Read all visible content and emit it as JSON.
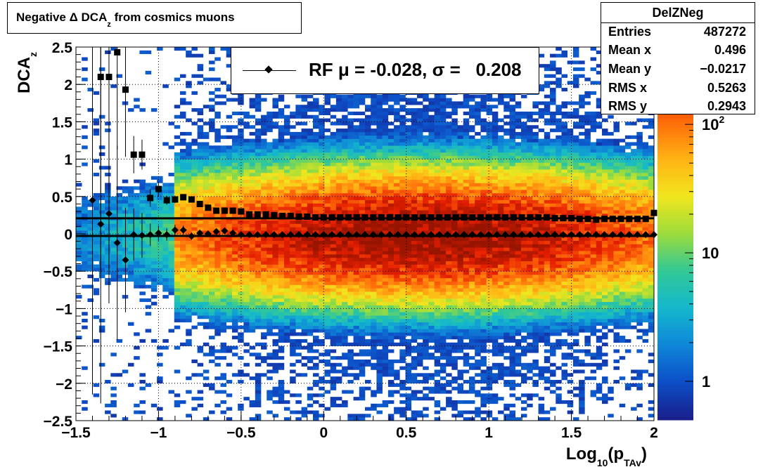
{
  "title": {
    "main": "Negative Δ DCA",
    "subscript": "z",
    "rest": "from cosmics muons"
  },
  "stats": {
    "name": "DelZNeg",
    "rows": [
      {
        "label": "Entries",
        "value": "487272"
      },
      {
        "label": "Mean x",
        "value": "0.496"
      },
      {
        "label": "Mean y",
        "value": "−0.0217"
      },
      {
        "label": "RMS x",
        "value": "0.5263"
      },
      {
        "label": "RMS y",
        "value": "0.2943"
      }
    ]
  },
  "legend": {
    "text": "RF μ = -0.028, σ =   0.208"
  },
  "axes": {
    "xlabel": {
      "base": "Log",
      "sub1": "10",
      "mid": "(p",
      "sub2": "TAv",
      "end": ")"
    },
    "ylabel": {
      "base": "DCA",
      "sub": "z"
    }
  },
  "colors": {
    "marker": "#000000",
    "palette": [
      "#1a1f8c",
      "#0c4fc8",
      "#0f87d8",
      "#14b8cc",
      "#32c896",
      "#9cdc3c",
      "#f0e61e",
      "#ffb414",
      "#ff6e0a",
      "#e61e00",
      "#961400"
    ]
  },
  "chart_data": {
    "type": "heatmap",
    "xlim": [
      -1.5,
      2
    ],
    "ylim": [
      -2.5,
      2.5
    ],
    "x_ticks": [
      "−1.5",
      "−1",
      "−0.5",
      "0",
      "0.5",
      "1",
      "1.5",
      "2"
    ],
    "y_ticks": [
      "−2.5",
      "−2",
      "−1.5",
      "−1",
      "−0.5",
      "0",
      "0.5",
      "1",
      "1.5",
      "2",
      "2.5"
    ],
    "z_scale": "log",
    "z_range": [
      0.5,
      400
    ],
    "z_tick_labels": [
      {
        "value": 1,
        "label": "1"
      },
      {
        "value": 10,
        "label": "10"
      },
      {
        "value": 100,
        "label": "10",
        "sup": "2"
      }
    ],
    "grid": true,
    "density_model": {
      "x_center": 0.6,
      "x_rms": 0.53,
      "y_center": -0.02,
      "y_rms": 0.29,
      "peak_counts": 400
    },
    "series": [
      {
        "name": "mean",
        "marker": "diamond",
        "x": [
          -1.4,
          -1.35,
          -1.3,
          -1.25,
          -1.2,
          -1.15,
          -1.1,
          -1.05,
          -1.0,
          -0.95,
          -0.9,
          -0.85,
          -0.8,
          -0.75,
          -0.7,
          -0.65,
          -0.6,
          -0.55,
          -0.5,
          -0.45,
          -0.4,
          -0.35,
          -0.3,
          -0.25,
          -0.2,
          -0.15,
          -0.1,
          -0.05,
          0.0,
          0.05,
          0.1,
          0.15,
          0.2,
          0.25,
          0.3,
          0.35,
          0.4,
          0.45,
          0.5,
          0.55,
          0.6,
          0.65,
          0.7,
          0.75,
          0.8,
          0.85,
          0.9,
          0.95,
          1.0,
          1.05,
          1.1,
          1.15,
          1.2,
          1.25,
          1.3,
          1.35,
          1.4,
          1.45,
          1.5,
          1.55,
          1.6,
          1.65,
          1.7,
          1.75,
          1.8,
          1.85,
          1.9,
          1.95,
          2.0
        ],
        "y": [
          0.45,
          0.13,
          0.27,
          -0.12,
          -0.35,
          -0.01,
          -0.02,
          -0.01,
          0.01,
          -0.01,
          0.05,
          0.05,
          -0.03,
          0.01,
          0.0,
          0.03,
          0.04,
          0.01,
          -0.01,
          -0.01,
          -0.01,
          -0.01,
          -0.01,
          -0.01,
          -0.01,
          -0.01,
          -0.01,
          -0.01,
          -0.01,
          -0.01,
          -0.01,
          -0.01,
          -0.01,
          -0.01,
          -0.01,
          -0.01,
          -0.01,
          -0.01,
          -0.01,
          -0.01,
          -0.01,
          -0.01,
          -0.01,
          -0.01,
          -0.01,
          -0.01,
          -0.01,
          -0.01,
          -0.01,
          -0.01,
          -0.01,
          -0.01,
          -0.01,
          -0.01,
          -0.01,
          -0.01,
          -0.01,
          -0.01,
          -0.01,
          -0.01,
          -0.01,
          -0.01,
          -0.01,
          -0.01,
          -0.01,
          -0.01,
          -0.01,
          -0.01,
          -0.01
        ],
        "yerr": [
          2.6,
          2.4,
          1.2,
          1.3,
          0.7,
          0.35,
          0.3,
          0.15,
          0.1,
          0.08,
          0.07,
          0.06,
          0.05,
          0.04,
          0.03,
          0.03,
          0.02,
          0.02,
          0.01,
          0.01,
          0.01,
          0.01,
          0.01,
          0.01,
          0.01,
          0.01,
          0.01,
          0.01,
          0.01,
          0.01,
          0.01,
          0.01,
          0.01,
          0.01,
          0.01,
          0.01,
          0.01,
          0.01,
          0.01,
          0.01,
          0.01,
          0.01,
          0.01,
          0.01,
          0.01,
          0.01,
          0.01,
          0.01,
          0.01,
          0.01,
          0.01,
          0.01,
          0.01,
          0.01,
          0.01,
          0.01,
          0.01,
          0.01,
          0.01,
          0.01,
          0.01,
          0.01,
          0.01,
          0.01,
          0.01,
          0.01,
          0.01,
          0.01,
          0.01
        ]
      },
      {
        "name": "RMS",
        "marker": "square",
        "x": [
          -1.35,
          -1.3,
          -1.25,
          -1.2,
          -1.15,
          -1.1,
          -1.05,
          -1.0,
          -0.95,
          -0.9,
          -0.85,
          -0.8,
          -0.75,
          -0.7,
          -0.65,
          -0.6,
          -0.55,
          -0.5,
          -0.45,
          -0.4,
          -0.35,
          -0.3,
          -0.25,
          -0.2,
          -0.15,
          -0.1,
          -0.05,
          0.0,
          0.05,
          0.1,
          0.15,
          0.2,
          0.25,
          0.3,
          0.35,
          0.4,
          0.45,
          0.5,
          0.55,
          0.6,
          0.65,
          0.7,
          0.75,
          0.8,
          0.85,
          0.9,
          0.95,
          1.0,
          1.05,
          1.1,
          1.15,
          1.2,
          1.25,
          1.3,
          1.35,
          1.4,
          1.45,
          1.5,
          1.55,
          1.6,
          1.65,
          1.7,
          1.75,
          1.8,
          1.85,
          1.9,
          1.95,
          2.0
        ],
        "y": [
          2.1,
          2.1,
          2.43,
          1.93,
          1.06,
          1.06,
          0.48,
          0.6,
          0.45,
          0.46,
          0.49,
          0.46,
          0.4,
          0.35,
          0.31,
          0.31,
          0.31,
          0.3,
          0.26,
          0.26,
          0.26,
          0.25,
          0.24,
          0.24,
          0.23,
          0.23,
          0.22,
          0.22,
          0.22,
          0.22,
          0.22,
          0.22,
          0.22,
          0.22,
          0.22,
          0.22,
          0.22,
          0.22,
          0.22,
          0.22,
          0.22,
          0.22,
          0.22,
          0.22,
          0.22,
          0.22,
          0.22,
          0.22,
          0.22,
          0.22,
          0.22,
          0.22,
          0.22,
          0.22,
          0.22,
          0.21,
          0.21,
          0.21,
          0.2,
          0.2,
          0.19,
          0.2,
          0.2,
          0.2,
          0.2,
          0.2,
          0.2,
          0.28
        ],
        "yerr": [
          2.6,
          2.6,
          1.3,
          0.9,
          0.25,
          0.2,
          0.12,
          0.1,
          0.06,
          0.05,
          0.04,
          0.03,
          0.02,
          0.02,
          0.01,
          0.01,
          0.01,
          0.01,
          0.01,
          0.01,
          0.01,
          0.01,
          0.01,
          0.01,
          0.01,
          0.01,
          0.01,
          0.01,
          0.01,
          0.01,
          0.01,
          0.01,
          0.01,
          0.01,
          0.01,
          0.01,
          0.01,
          0.01,
          0.01,
          0.01,
          0.01,
          0.01,
          0.01,
          0.01,
          0.01,
          0.01,
          0.01,
          0.01,
          0.01,
          0.01,
          0.01,
          0.01,
          0.01,
          0.01,
          0.01,
          0.01,
          0.01,
          0.01,
          0.01,
          0.01,
          0.01,
          0.01,
          0.01,
          0.01,
          0.01,
          0.01,
          0.01,
          0.02
        ]
      },
      {
        "name": "mean-fit",
        "type": "line",
        "x": [
          -1.5,
          2.0
        ],
        "y": [
          -0.028,
          -0.028
        ]
      },
      {
        "name": "rms-fit",
        "type": "line",
        "x": [
          -1.5,
          2.0
        ],
        "y": [
          0.208,
          0.208
        ]
      }
    ]
  }
}
